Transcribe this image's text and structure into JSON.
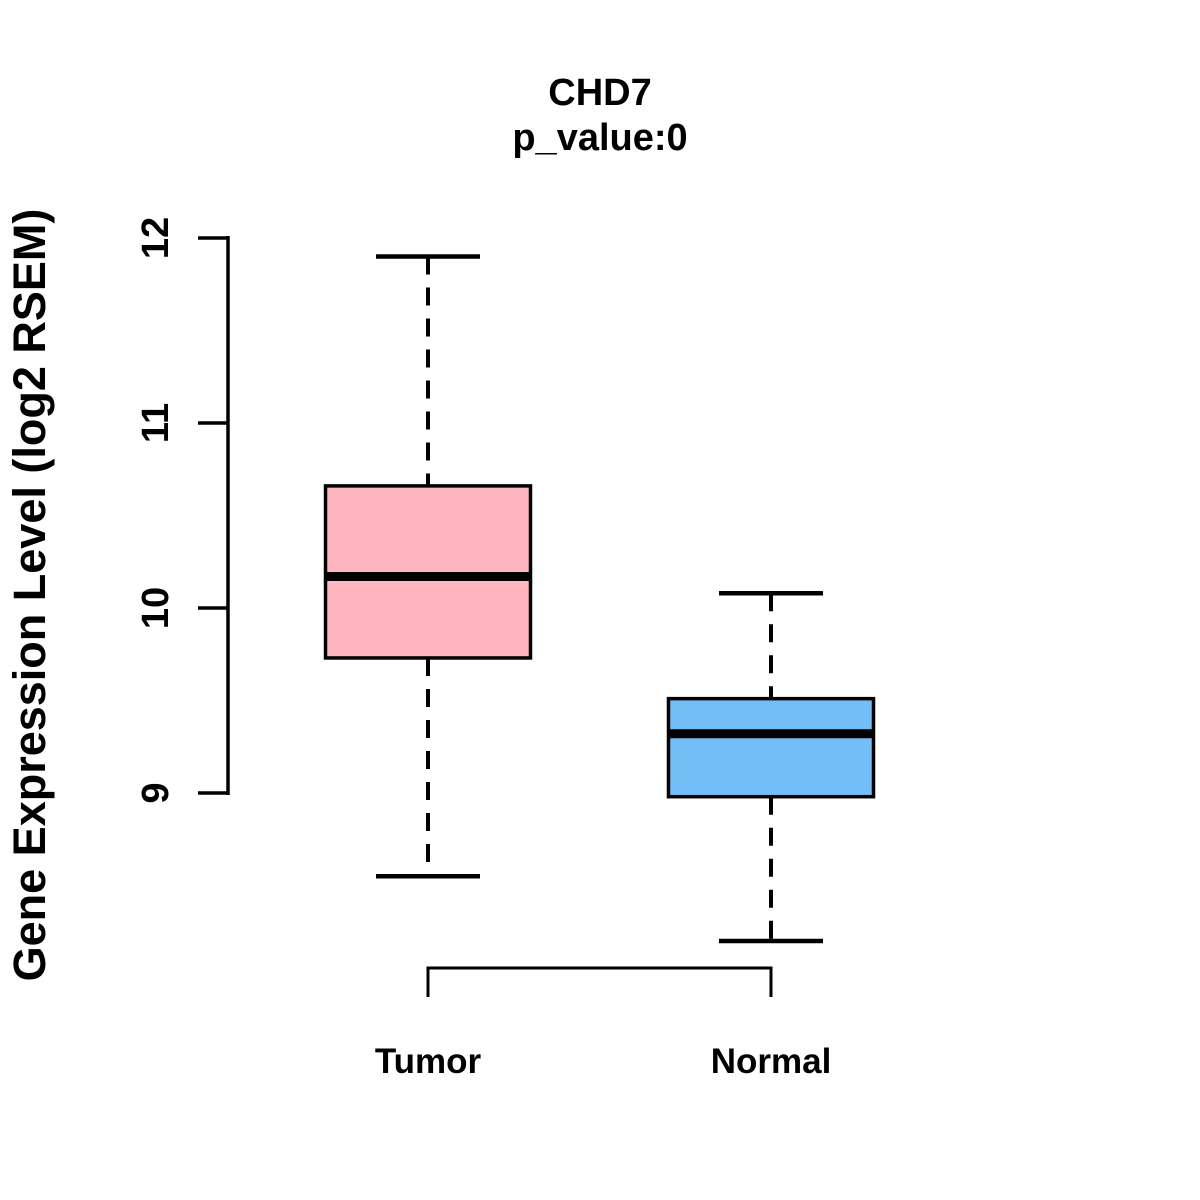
{
  "figure": {
    "background": "#FFFFFF",
    "title": "CHD7",
    "subtitle": "p_value:0"
  },
  "chart_data": {
    "type": "boxplot",
    "title": "CHD7",
    "subtitle": "p_value:0",
    "xlabel": "",
    "ylabel": "Gene Expression Level (log2 RSEM)",
    "yticks": [
      9,
      10,
      11,
      12
    ],
    "ytick_range": [
      9,
      12
    ],
    "ylim": [
      8.1,
      12.0
    ],
    "grid": false,
    "legend": "none",
    "categories": [
      "Tumor",
      "Normal"
    ],
    "series": [
      {
        "name": "Tumor",
        "color": "#FFB6C1",
        "lower_whisker": 8.55,
        "q1": 9.73,
        "median": 10.17,
        "q3": 10.66,
        "upper_whisker": 11.9
      },
      {
        "name": "Normal",
        "color": "#74BEF8",
        "lower_whisker": 8.2,
        "q1": 8.98,
        "median": 9.32,
        "q3": 9.51,
        "upper_whisker": 10.08
      }
    ],
    "annotations": [
      {
        "type": "comparison-bracket",
        "between": [
          "Tumor",
          "Normal"
        ]
      }
    ],
    "stroke_color": "#000000"
  }
}
